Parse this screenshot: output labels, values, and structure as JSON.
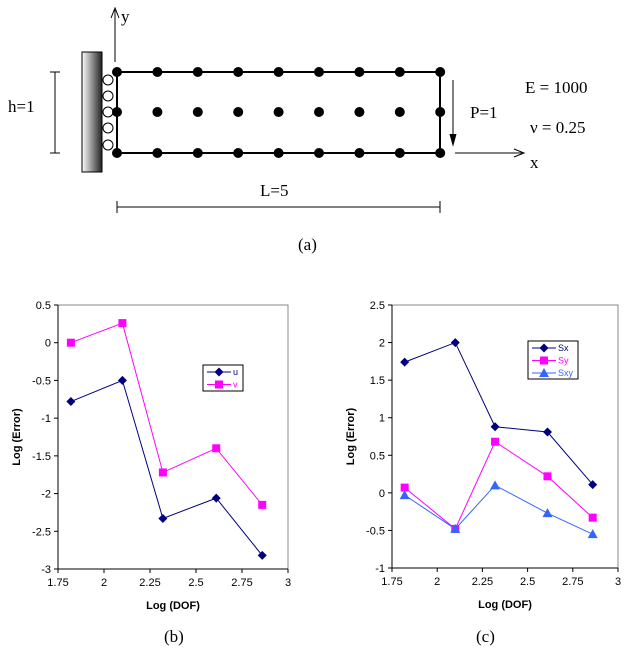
{
  "diagram": {
    "y_label": "y",
    "x_label": "x",
    "h_label": "h=1",
    "l_label": "L=5",
    "p_label": "P=1",
    "e_label": "E = 1000",
    "nu_label": "ν = 0.25",
    "caption": "(a)"
  },
  "captions": {
    "b": "(b)",
    "c": "(c)"
  },
  "chart_data": [
    {
      "type": "line",
      "xlabel": "Log (DOF)",
      "ylabel": "Log (Error)",
      "xlim": [
        1.75,
        3
      ],
      "ylim": [
        -3,
        0.5
      ],
      "xticks": [
        "1.75",
        "2",
        "2.25",
        "2.5",
        "2.75",
        "3"
      ],
      "yticks": [
        "0.5",
        "0",
        "-0.5",
        "-1",
        "-1.5",
        "-2",
        "-2.5",
        "-3"
      ],
      "x": [
        1.82,
        2.1,
        2.32,
        2.61,
        2.86
      ],
      "legend": "right",
      "series": [
        {
          "name": "u",
          "color": "#000080",
          "marker": "diamond",
          "values": [
            -0.78,
            -0.5,
            -2.33,
            -2.06,
            -2.82
          ]
        },
        {
          "name": "v",
          "color": "#ff00ff",
          "marker": "square",
          "values": [
            0.0,
            0.26,
            -1.72,
            -1.4,
            -2.15
          ]
        }
      ]
    },
    {
      "type": "line",
      "xlabel": "Log (DOF)",
      "ylabel": "Log (Error)",
      "xlim": [
        1.75,
        3
      ],
      "ylim": [
        -1,
        2.5
      ],
      "xticks": [
        "1.75",
        "2",
        "2.25",
        "2.5",
        "2.75",
        "3"
      ],
      "yticks": [
        "2.5",
        "2",
        "1.5",
        "1",
        "0.5",
        "0",
        "-0.5",
        "-1"
      ],
      "x": [
        1.82,
        2.1,
        2.32,
        2.61,
        2.86
      ],
      "legend": "top-right",
      "series": [
        {
          "name": "Sx",
          "color": "#000080",
          "marker": "diamond",
          "values": [
            1.74,
            2.0,
            0.88,
            0.81,
            0.11
          ]
        },
        {
          "name": "Sy",
          "color": "#ff00ff",
          "marker": "square",
          "values": [
            0.07,
            -0.48,
            0.68,
            0.22,
            -0.33
          ]
        },
        {
          "name": "Sxy",
          "color": "#3366ff",
          "marker": "triangle",
          "values": [
            -0.03,
            -0.48,
            0.1,
            -0.27,
            -0.55
          ]
        }
      ]
    }
  ]
}
